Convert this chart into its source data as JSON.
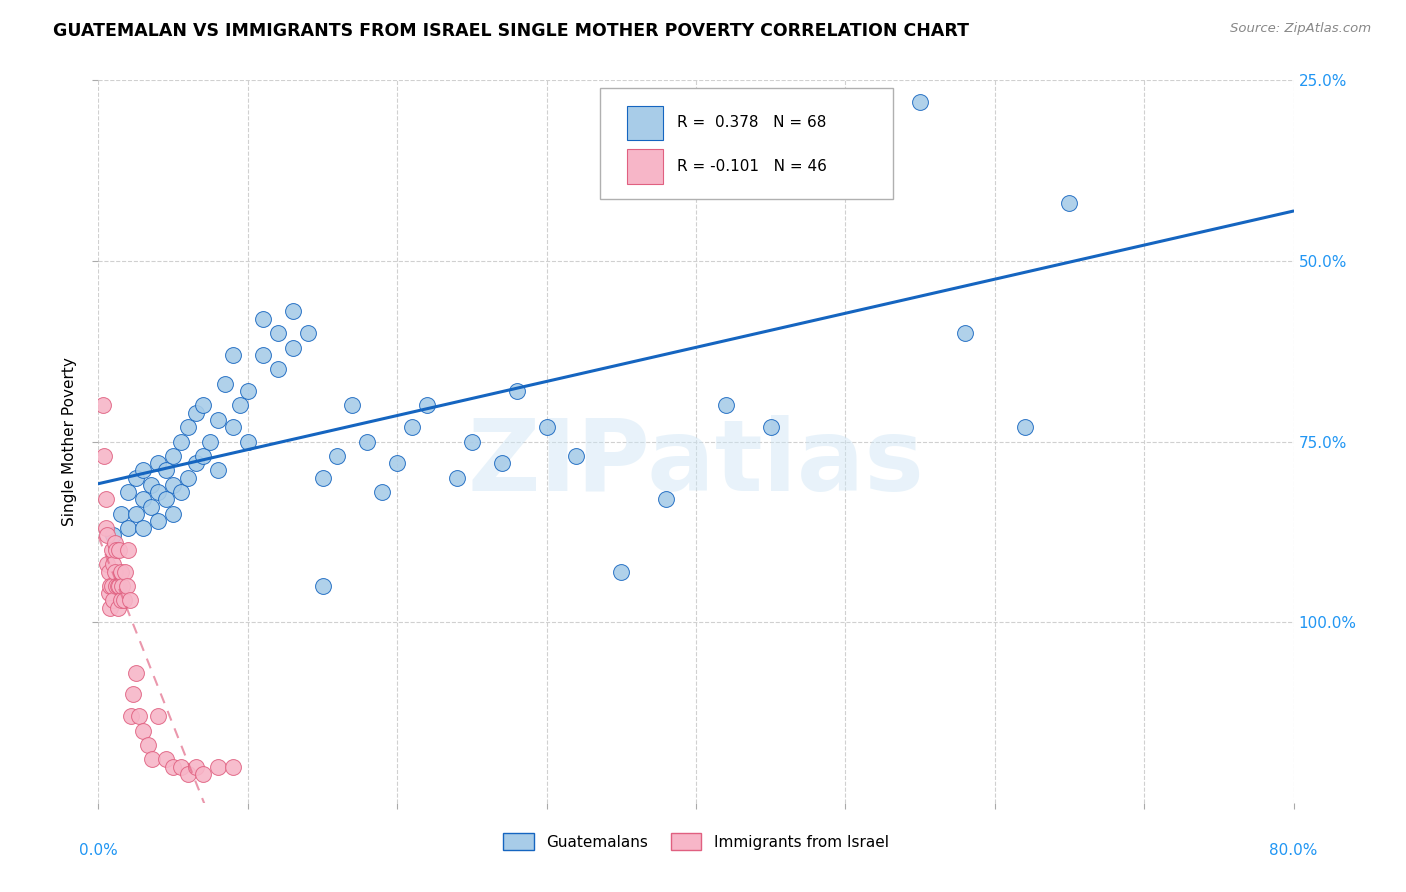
{
  "title": "GUATEMALAN VS IMMIGRANTS FROM ISRAEL SINGLE MOTHER POVERTY CORRELATION CHART",
  "source": "Source: ZipAtlas.com",
  "ylabel": "Single Mother Poverty",
  "ytick_labels": [
    "100.0%",
    "75.0%",
    "50.0%",
    "25.0%"
  ],
  "background_color": "#ffffff",
  "grid_color": "#d0d0d0",
  "watermark": "ZIPatlas",
  "legend_blue_label": "Guatemalans",
  "legend_pink_label": "Immigrants from Israel",
  "r_blue": "R =  0.378",
  "n_blue": "N = 68",
  "r_pink": "R = -0.101",
  "n_pink": "N = 46",
  "blue_color": "#a8cce8",
  "pink_color": "#f7b6c8",
  "blue_line_color": "#1565c0",
  "pink_line_color": "#e06080",
  "axis_color": "#2196F3",
  "blue_scatter_x": [
    0.01,
    0.015,
    0.02,
    0.02,
    0.025,
    0.025,
    0.03,
    0.03,
    0.03,
    0.035,
    0.035,
    0.04,
    0.04,
    0.04,
    0.045,
    0.045,
    0.05,
    0.05,
    0.05,
    0.055,
    0.055,
    0.06,
    0.06,
    0.065,
    0.065,
    0.07,
    0.07,
    0.075,
    0.08,
    0.08,
    0.085,
    0.09,
    0.09,
    0.095,
    0.1,
    0.1,
    0.11,
    0.11,
    0.12,
    0.12,
    0.13,
    0.13,
    0.14,
    0.15,
    0.15,
    0.16,
    0.17,
    0.18,
    0.19,
    0.2,
    0.21,
    0.22,
    0.24,
    0.25,
    0.27,
    0.28,
    0.3,
    0.32,
    0.35,
    0.38,
    0.42,
    0.45,
    0.48,
    0.52,
    0.55,
    0.58,
    0.62,
    0.65
  ],
  "blue_scatter_y": [
    0.37,
    0.4,
    0.38,
    0.43,
    0.4,
    0.45,
    0.38,
    0.42,
    0.46,
    0.41,
    0.44,
    0.39,
    0.43,
    0.47,
    0.42,
    0.46,
    0.4,
    0.44,
    0.48,
    0.43,
    0.5,
    0.45,
    0.52,
    0.47,
    0.54,
    0.48,
    0.55,
    0.5,
    0.46,
    0.53,
    0.58,
    0.52,
    0.62,
    0.55,
    0.5,
    0.57,
    0.62,
    0.67,
    0.6,
    0.65,
    0.63,
    0.68,
    0.65,
    0.3,
    0.45,
    0.48,
    0.55,
    0.5,
    0.43,
    0.47,
    0.52,
    0.55,
    0.45,
    0.5,
    0.47,
    0.57,
    0.52,
    0.48,
    0.32,
    0.42,
    0.55,
    0.52,
    0.97,
    0.97,
    0.97,
    0.65,
    0.52,
    0.83
  ],
  "pink_scatter_x": [
    0.003,
    0.004,
    0.005,
    0.005,
    0.006,
    0.006,
    0.007,
    0.007,
    0.008,
    0.008,
    0.009,
    0.009,
    0.01,
    0.01,
    0.011,
    0.011,
    0.012,
    0.012,
    0.013,
    0.013,
    0.014,
    0.014,
    0.015,
    0.015,
    0.016,
    0.017,
    0.018,
    0.019,
    0.02,
    0.021,
    0.022,
    0.023,
    0.025,
    0.027,
    0.03,
    0.033,
    0.036,
    0.04,
    0.045,
    0.05,
    0.055,
    0.06,
    0.065,
    0.07,
    0.08,
    0.09
  ],
  "pink_scatter_y": [
    0.55,
    0.48,
    0.42,
    0.38,
    0.37,
    0.33,
    0.32,
    0.29,
    0.3,
    0.27,
    0.35,
    0.3,
    0.33,
    0.28,
    0.32,
    0.36,
    0.3,
    0.35,
    0.3,
    0.27,
    0.3,
    0.35,
    0.28,
    0.32,
    0.3,
    0.28,
    0.32,
    0.3,
    0.35,
    0.28,
    0.12,
    0.15,
    0.18,
    0.12,
    0.1,
    0.08,
    0.06,
    0.12,
    0.06,
    0.05,
    0.05,
    0.04,
    0.05,
    0.04,
    0.05,
    0.05
  ],
  "xlim": [
    0.0,
    0.8
  ],
  "ylim": [
    0.0,
    1.0
  ],
  "xticks": [
    0.0,
    0.1,
    0.2,
    0.3,
    0.4,
    0.5,
    0.6,
    0.7,
    0.8
  ],
  "ytick_vals": [
    0.25,
    0.5,
    0.75,
    1.0
  ]
}
